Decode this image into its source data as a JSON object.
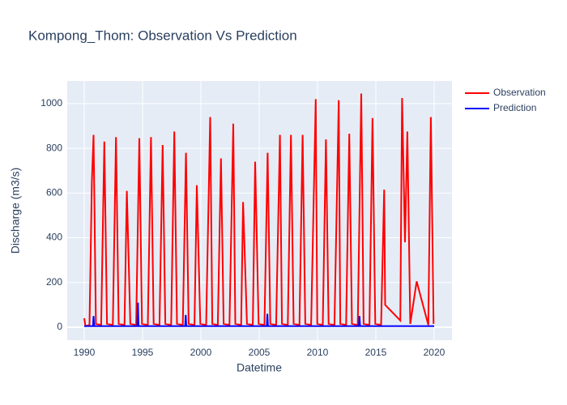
{
  "chart_data": {
    "type": "line",
    "title": "Kompong_Thom: Observation Vs Prediction",
    "x_label": "Datetime",
    "y_label": "Discharge (m3/s)",
    "xlim": [
      1988.54,
      2021.53
    ],
    "xticks": [
      1990,
      1995,
      2000,
      2005,
      2010,
      2015,
      2020
    ],
    "ylim": [
      -58,
      1101
    ],
    "yticks": [
      0,
      200,
      400,
      600,
      800,
      1000
    ],
    "grid": true,
    "legend": "right",
    "series": [
      {
        "name": "Observation",
        "color": "#ff0000",
        "x": [
          1990.0,
          1990.1,
          1990.45,
          1990.65,
          1990.8,
          1991.0,
          1991.45,
          1991.72,
          1991.95,
          1992.45,
          1992.72,
          1992.95,
          1993.45,
          1993.65,
          1993.95,
          1994.45,
          1994.72,
          1994.95,
          1995.45,
          1995.72,
          1995.95,
          1996.45,
          1996.72,
          1996.95,
          1997.45,
          1997.72,
          1997.95,
          1998.45,
          1998.72,
          1998.95,
          1999.45,
          1999.65,
          1999.95,
          2000.45,
          2000.8,
          2000.98,
          2001.45,
          2001.72,
          2001.95,
          2002.45,
          2002.78,
          2002.95,
          2003.45,
          2003.62,
          2003.95,
          2004.45,
          2004.65,
          2004.95,
          2005.45,
          2005.72,
          2005.95,
          2006.45,
          2006.78,
          2006.95,
          2007.45,
          2007.72,
          2007.95,
          2008.45,
          2008.72,
          2008.95,
          2009.45,
          2009.85,
          2009.98,
          2010.45,
          2010.72,
          2010.95,
          2011.45,
          2011.82,
          2011.95,
          2012.45,
          2012.72,
          2012.95,
          2013.45,
          2013.75,
          2013.95,
          2014.45,
          2014.72,
          2014.95,
          2015.45,
          2015.72,
          2015.8,
          2017.1,
          2017.25,
          2017.5,
          2017.7,
          2017.95,
          2018.5,
          2019.5,
          2019.72,
          2019.95
        ],
        "values": [
          40,
          5,
          10,
          650,
          860,
          15,
          10,
          830,
          15,
          10,
          850,
          15,
          10,
          610,
          15,
          10,
          845,
          15,
          10,
          850,
          15,
          10,
          815,
          15,
          10,
          875,
          15,
          10,
          780,
          15,
          10,
          635,
          15,
          10,
          940,
          15,
          10,
          755,
          15,
          10,
          910,
          15,
          10,
          560,
          15,
          10,
          740,
          15,
          10,
          780,
          15,
          10,
          860,
          15,
          10,
          860,
          15,
          10,
          860,
          15,
          10,
          1020,
          15,
          10,
          840,
          15,
          10,
          1015,
          15,
          10,
          865,
          15,
          10,
          1045,
          15,
          10,
          935,
          15,
          10,
          615,
          100,
          30,
          1025,
          380,
          875,
          15,
          205,
          10,
          940,
          15
        ]
      },
      {
        "name": "Prediction",
        "color": "#0000ff",
        "x": [
          1990.0,
          1990.75,
          1990.8,
          1990.85,
          1994.55,
          1994.6,
          1994.65,
          1998.65,
          1998.7,
          1998.75,
          2005.65,
          2005.7,
          2005.75,
          2013.55,
          2013.6,
          2013.65,
          2020.0
        ],
        "values": [
          5,
          5,
          50,
          5,
          5,
          110,
          5,
          5,
          55,
          5,
          5,
          60,
          5,
          5,
          50,
          5,
          5
        ]
      }
    ]
  }
}
